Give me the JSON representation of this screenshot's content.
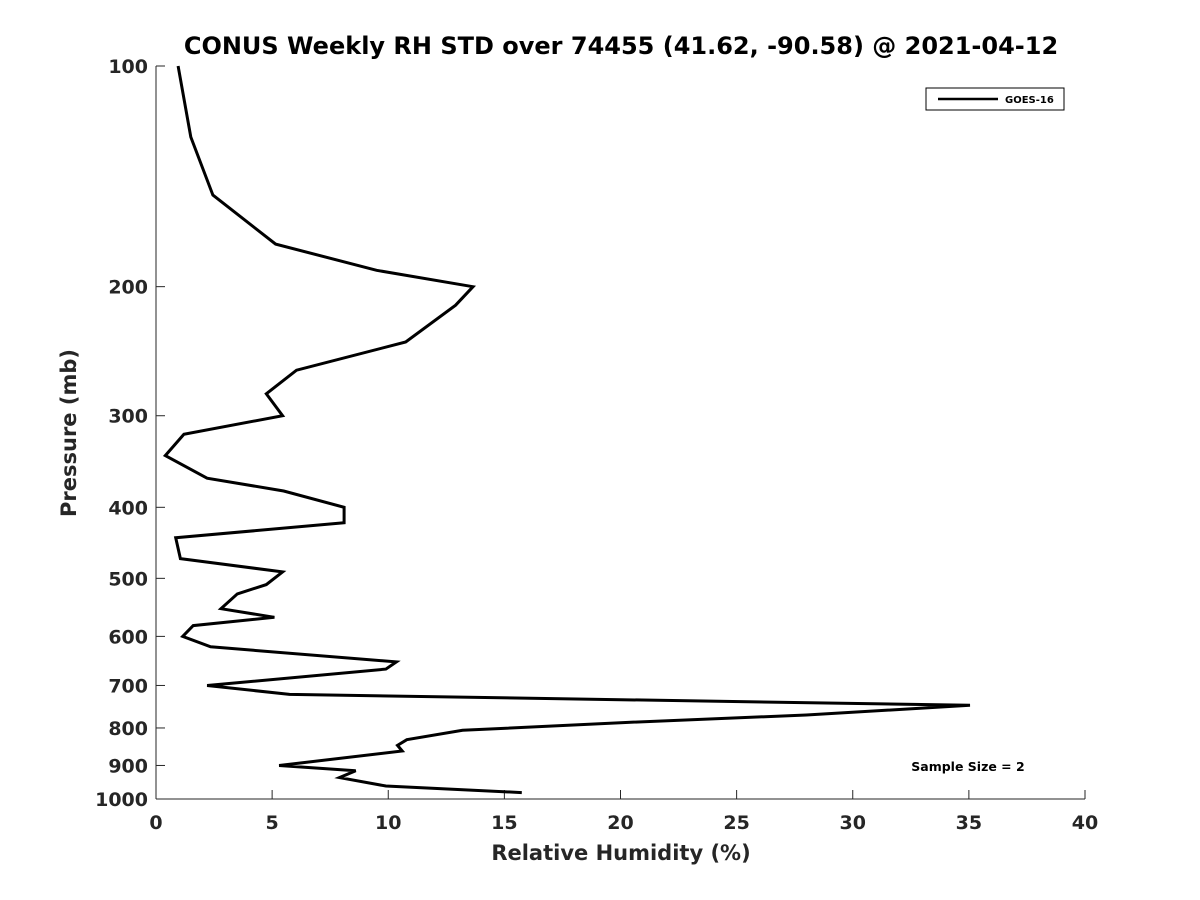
{
  "chart_data": {
    "type": "line",
    "title": "CONUS Weekly RH STD over 74455 (41.62, -90.58) @ 2021-04-12",
    "xlabel": "Relative Humidity (%)",
    "ylabel": "Pressure (mb)",
    "xlim": [
      0,
      40
    ],
    "ylim": [
      100,
      1000
    ],
    "y_scale": "log",
    "y_reversed": true,
    "x_ticks": [
      0,
      5,
      10,
      15,
      20,
      25,
      30,
      35,
      40
    ],
    "y_ticks": [
      100,
      200,
      300,
      400,
      500,
      600,
      700,
      800,
      900,
      1000
    ],
    "grid": false,
    "legend_position": "top-right",
    "annotation": "Sample Size = 2",
    "series": [
      {
        "name": "GOES-16",
        "color": "#000000",
        "points": [
          [
            0.95,
            100
          ],
          [
            1.5,
            125
          ],
          [
            2.45,
            150
          ],
          [
            5.15,
            175
          ],
          [
            9.5,
            190
          ],
          [
            13.65,
            200
          ],
          [
            12.9,
            212
          ],
          [
            10.75,
            238
          ],
          [
            6.05,
            260
          ],
          [
            4.75,
            280
          ],
          [
            5.45,
            300
          ],
          [
            1.2,
            318
          ],
          [
            0.4,
            340
          ],
          [
            2.2,
            365
          ],
          [
            5.5,
            380
          ],
          [
            8.1,
            400
          ],
          [
            8.1,
            420
          ],
          [
            0.85,
            440
          ],
          [
            1.05,
            470
          ],
          [
            5.45,
            490
          ],
          [
            4.75,
            510
          ],
          [
            3.5,
            525
          ],
          [
            2.8,
            550
          ],
          [
            5.1,
            565
          ],
          [
            1.6,
            580
          ],
          [
            1.15,
            600
          ],
          [
            2.35,
            620
          ],
          [
            10.35,
            650
          ],
          [
            9.9,
            665
          ],
          [
            2.2,
            700
          ],
          [
            5.75,
            720
          ],
          [
            35.05,
            745
          ],
          [
            28,
            768
          ],
          [
            20,
            787
          ],
          [
            13.2,
            806
          ],
          [
            10.8,
            830
          ],
          [
            10.4,
            845
          ],
          [
            10.6,
            860
          ],
          [
            5.3,
            900
          ],
          [
            8.6,
            915
          ],
          [
            7.9,
            935
          ],
          [
            9.9,
            960
          ],
          [
            15.75,
            980
          ]
        ]
      }
    ]
  }
}
